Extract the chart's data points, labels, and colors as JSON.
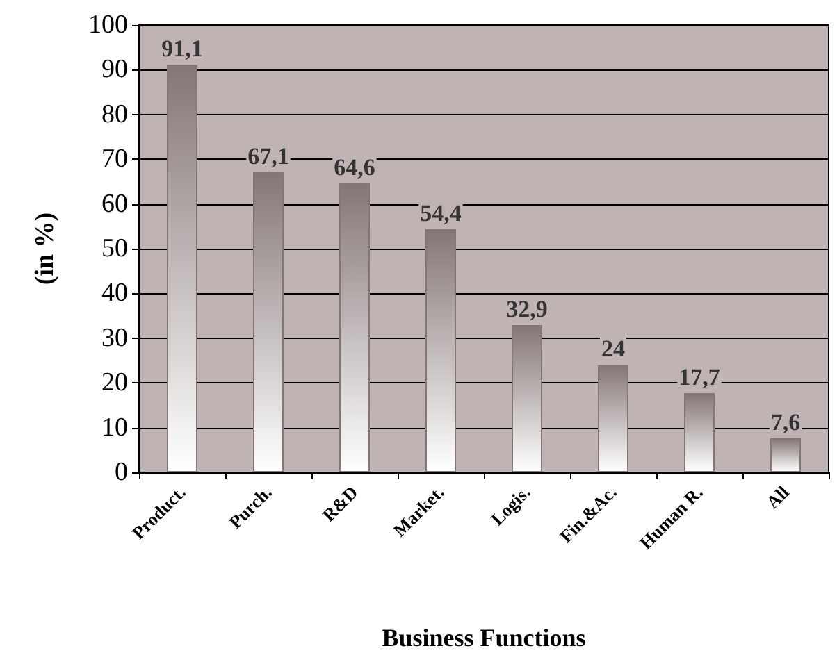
{
  "chart_data": {
    "type": "bar",
    "xlabel": "Business Functions",
    "ylabel": "(in %)",
    "categories": [
      "Product.",
      "Purch.",
      "R&D",
      "Market.",
      "Logis.",
      "Fin.&Ac.",
      "Human R.",
      "All"
    ],
    "values": [
      91.1,
      67.1,
      64.6,
      54.4,
      32.9,
      24,
      17.7,
      7.6
    ],
    "value_labels": [
      "91,1",
      "67,1",
      "64,6",
      "54,4",
      "32,9",
      "24",
      "17,7",
      "7,6"
    ],
    "color": "#857676",
    "ylim": [
      0,
      100
    ],
    "yticks": [
      0,
      10,
      20,
      30,
      40,
      50,
      60,
      70,
      80,
      90,
      100
    ],
    "grid": "y"
  }
}
